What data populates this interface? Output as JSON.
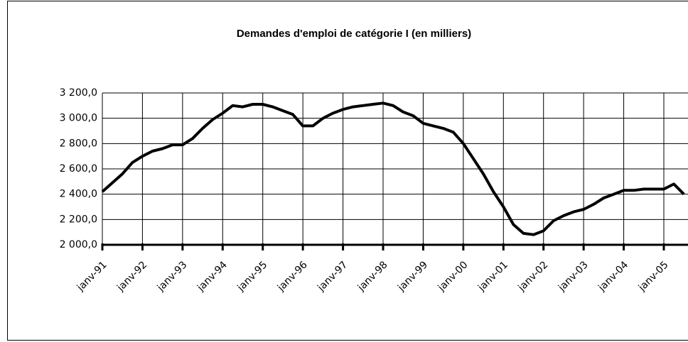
{
  "chart_data": {
    "type": "line",
    "title": "Demandes d'emploi de catégorie I (en milliers)",
    "categories": [
      "janv-91",
      null,
      null,
      null,
      "janv-92",
      null,
      null,
      null,
      "janv-93",
      null,
      null,
      null,
      "janv-94",
      null,
      null,
      null,
      "janv-95",
      null,
      null,
      null,
      "janv-96",
      null,
      null,
      null,
      "janv-97",
      null,
      null,
      null,
      "janv-98",
      null,
      null,
      null,
      "janv-99",
      null,
      null,
      null,
      "janv-00",
      null,
      null,
      null,
      "janv-01",
      null,
      null,
      null,
      "janv-02",
      null,
      null,
      null,
      "janv-03",
      null,
      null,
      null,
      "janv-04",
      null,
      null,
      null,
      "janv-05",
      null,
      null
    ],
    "series": [
      {
        "name": "Demandes d'emploi",
        "color": "#000000",
        "values": [
          2420,
          2490,
          2560,
          2650,
          2700,
          2740,
          2760,
          2790,
          2790,
          2840,
          2920,
          2990,
          3040,
          3100,
          3090,
          3110,
          3110,
          3090,
          3060,
          3030,
          2940,
          2940,
          3000,
          3040,
          3070,
          3090,
          3100,
          3110,
          3120,
          3100,
          3050,
          3020,
          2960,
          2940,
          2920,
          2890,
          2800,
          2680,
          2560,
          2420,
          2300,
          2160,
          2090,
          2080,
          2110,
          2190,
          2230,
          2260,
          2280,
          2320,
          2370,
          2400,
          2430,
          2430,
          2440,
          2440,
          2440,
          2480,
          2400
        ]
      }
    ],
    "ylim": [
      2000,
      3200
    ],
    "yticks": [
      {
        "value": 2000,
        "label": "2 000,0"
      },
      {
        "value": 2200,
        "label": "2 200,0"
      },
      {
        "value": 2400,
        "label": "2 400,0"
      },
      {
        "value": 2600,
        "label": "2 600,0"
      },
      {
        "value": 2800,
        "label": "2 800,0"
      },
      {
        "value": 3000,
        "label": "3 000,0"
      },
      {
        "value": 3200,
        "label": "3 200,0"
      }
    ],
    "grid": true,
    "legend": false
  }
}
